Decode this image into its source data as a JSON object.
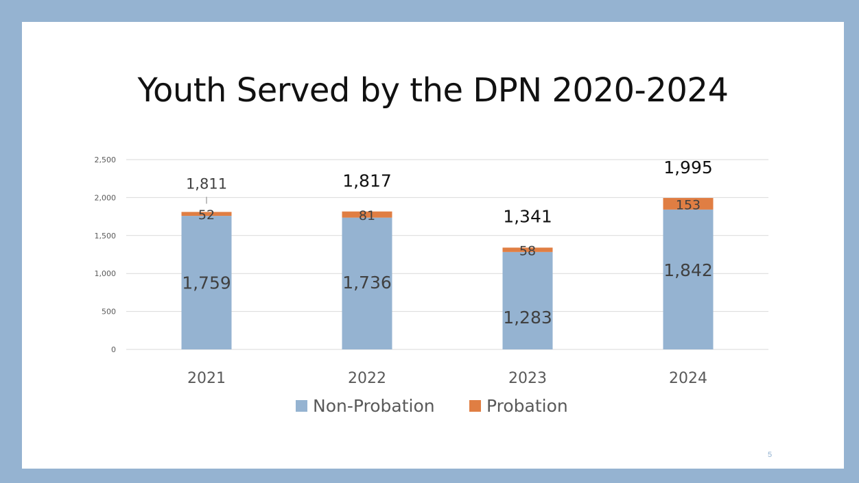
{
  "slide": {
    "title": "Youth Served by the DPN 2020-2024",
    "page_number": "5"
  },
  "colors": {
    "frame": "#95b3d1",
    "non_probation": "#95b3d1",
    "probation": "#e07e43",
    "gridline": "#d9d9d9",
    "axis_text": "#595959"
  },
  "chart_data": {
    "type": "bar",
    "stacked": true,
    "categories": [
      "2021",
      "2022",
      "2023",
      "2024"
    ],
    "series": [
      {
        "name": "Non-Probation",
        "values": [
          1759,
          1736,
          1283,
          1842
        ],
        "labels": [
          "1,759",
          "1,736",
          "1,283",
          "1,842"
        ]
      },
      {
        "name": "Probation",
        "values": [
          52,
          81,
          58,
          153
        ],
        "labels": [
          "52",
          "81",
          "58",
          "153"
        ]
      }
    ],
    "totals": [
      1811,
      1817,
      1341,
      1995
    ],
    "total_labels": [
      "1,811",
      "1,817",
      "1,341",
      "1,995"
    ],
    "ylim": [
      0,
      2500
    ],
    "yticks": [
      0,
      500,
      1000,
      1500,
      2000,
      2500
    ],
    "ytick_labels": [
      "0",
      "500",
      "1,000",
      "1,500",
      "2,000",
      "2,500"
    ],
    "grid": true,
    "legend_position": "bottom"
  }
}
